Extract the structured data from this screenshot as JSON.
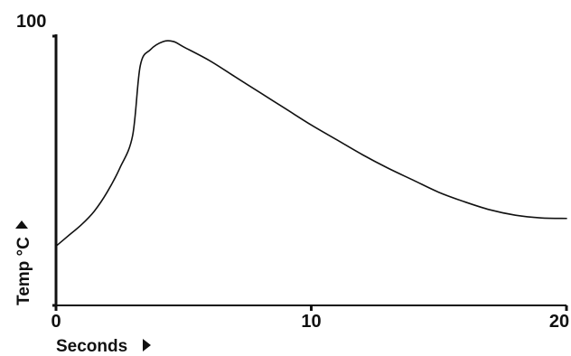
{
  "chart_data": {
    "type": "line",
    "xlabel": "Seconds",
    "ylabel": "Temp °C",
    "xlim": [
      0,
      20
    ],
    "ylim": [
      0,
      100
    ],
    "x_ticks": [
      "0",
      "10",
      "20"
    ],
    "y_ticks": [
      "100"
    ],
    "grid": false,
    "colors": {
      "line": "#111111",
      "axis": "#111111"
    },
    "series": [
      {
        "x": [
          0,
          0.5,
          1,
          1.5,
          2,
          2.5,
          3,
          3.3,
          3.7,
          4.2,
          4.6,
          5,
          6,
          7,
          8,
          9,
          10,
          11,
          12,
          13,
          14,
          15,
          16,
          17,
          18,
          19,
          20
        ],
        "y": [
          22,
          26,
          30,
          35,
          42,
          51,
          63,
          89,
          95,
          98,
          98,
          96,
          91,
          85,
          79,
          73,
          67,
          61.5,
          56,
          51,
          46.5,
          42,
          38.5,
          35.5,
          33.5,
          32.5,
          32.3
        ]
      }
    ]
  }
}
